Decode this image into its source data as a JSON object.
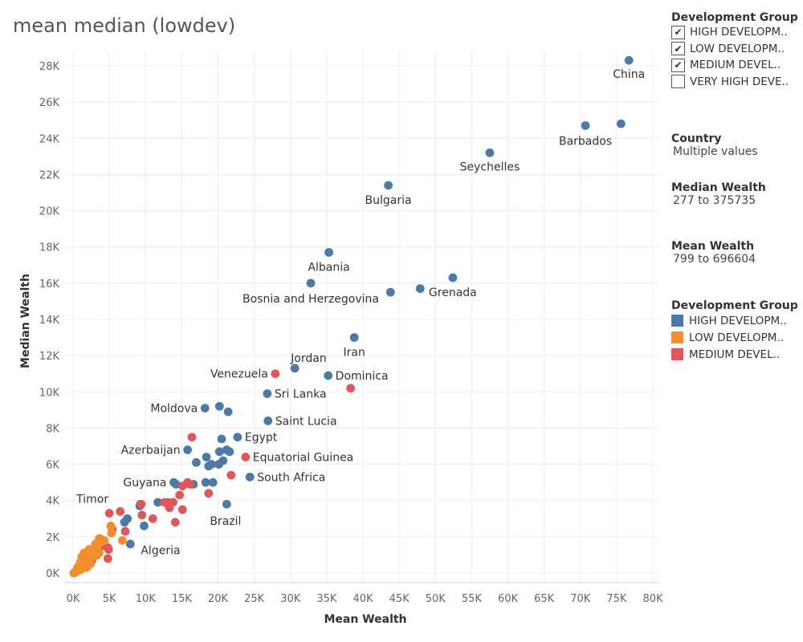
{
  "title": "mean median (lowdev)",
  "filters": {
    "development_group": {
      "title": "Development Group",
      "options": [
        {
          "label": "HIGH DEVELOPM..",
          "checked": true
        },
        {
          "label": "LOW DEVELOPM..",
          "checked": true
        },
        {
          "label": "MEDIUM DEVEL..",
          "checked": true
        },
        {
          "label": "VERY HIGH DEVE..",
          "checked": false
        }
      ]
    },
    "country": {
      "title": "Country",
      "value": "Multiple values"
    },
    "median_wealth": {
      "title": "Median Wealth",
      "value": "277 to 375735"
    },
    "mean_wealth": {
      "title": "Mean Wealth",
      "value": "799 to 696604"
    }
  },
  "legend": {
    "title": "Development Group",
    "items": [
      {
        "label": "HIGH DEVELOPM..",
        "color": "#4e79a7"
      },
      {
        "label": "LOW DEVELOPM..",
        "color": "#f28e2b"
      },
      {
        "label": "MEDIUM DEVEL..",
        "color": "#e15759"
      }
    ]
  },
  "chart_data": {
    "type": "scatter",
    "xlabel": "Mean Wealth",
    "ylabel": "Median Wealth",
    "xlim": [
      0,
      80000
    ],
    "ylim": [
      0,
      28000
    ],
    "xticks": [
      0,
      5000,
      10000,
      15000,
      20000,
      25000,
      30000,
      35000,
      40000,
      45000,
      50000,
      55000,
      60000,
      65000,
      70000,
      75000,
      80000
    ],
    "xtick_labels": [
      "0K",
      "5K",
      "10K",
      "15K",
      "20K",
      "25K",
      "30K",
      "35K",
      "40K",
      "45K",
      "50K",
      "55K",
      "60K",
      "65K",
      "70K",
      "75K",
      "80K"
    ],
    "yticks": [
      0,
      2000,
      4000,
      6000,
      8000,
      10000,
      12000,
      14000,
      16000,
      18000,
      20000,
      22000,
      24000,
      26000,
      28000
    ],
    "ytick_labels": [
      "0K",
      "2K",
      "4K",
      "6K",
      "8K",
      "10K",
      "12K",
      "14K",
      "16K",
      "18K",
      "20K",
      "22K",
      "24K",
      "26K",
      "28K"
    ],
    "grid": true,
    "series": [
      {
        "name": "HIGH DEVELOPM..",
        "color": "#4e79a7",
        "points": [
          {
            "x": 76700,
            "y": 28300,
            "label": "China"
          },
          {
            "x": 70700,
            "y": 24700,
            "label": "Barbados"
          },
          {
            "x": 75600,
            "y": 24800
          },
          {
            "x": 57500,
            "y": 23200,
            "label": "Seychelles"
          },
          {
            "x": 43500,
            "y": 21400,
            "label": "Bulgaria"
          },
          {
            "x": 35300,
            "y": 17700,
            "label": "Albania"
          },
          {
            "x": 32800,
            "y": 16000,
            "label": "Bosnia and Herzegovina"
          },
          {
            "x": 43800,
            "y": 15500
          },
          {
            "x": 47900,
            "y": 15700
          },
          {
            "x": 52400,
            "y": 16300,
            "label": "Grenada"
          },
          {
            "x": 38800,
            "y": 13000,
            "label": "Iran"
          },
          {
            "x": 30600,
            "y": 11300,
            "label": "Jordan"
          },
          {
            "x": 35200,
            "y": 10900,
            "label": "Dominica"
          },
          {
            "x": 26800,
            "y": 9900,
            "label": "Sri Lanka"
          },
          {
            "x": 18200,
            "y": 9100,
            "label": "Moldova"
          },
          {
            "x": 20200,
            "y": 9200
          },
          {
            "x": 21400,
            "y": 8900
          },
          {
            "x": 26900,
            "y": 8400,
            "label": "Saint Lucia"
          },
          {
            "x": 22700,
            "y": 7500,
            "label": "Egypt"
          },
          {
            "x": 20500,
            "y": 7400
          },
          {
            "x": 15800,
            "y": 6800,
            "label": "Azerbaijan"
          },
          {
            "x": 20200,
            "y": 6700
          },
          {
            "x": 21200,
            "y": 6800
          },
          {
            "x": 21600,
            "y": 6700
          },
          {
            "x": 18400,
            "y": 6400
          },
          {
            "x": 17000,
            "y": 6100
          },
          {
            "x": 18700,
            "y": 5900
          },
          {
            "x": 19100,
            "y": 6000
          },
          {
            "x": 20100,
            "y": 6000
          },
          {
            "x": 20700,
            "y": 6200
          },
          {
            "x": 24400,
            "y": 5300,
            "label": "South Africa"
          },
          {
            "x": 13900,
            "y": 5000,
            "label": "Guyana"
          },
          {
            "x": 14200,
            "y": 4900
          },
          {
            "x": 16600,
            "y": 4900
          },
          {
            "x": 18300,
            "y": 5000
          },
          {
            "x": 19300,
            "y": 5000
          },
          {
            "x": 21200,
            "y": 3800,
            "label": "Brazil"
          },
          {
            "x": 9300,
            "y": 3800
          },
          {
            "x": 9200,
            "y": 3700
          },
          {
            "x": 11700,
            "y": 3900
          },
          {
            "x": 7500,
            "y": 3000
          },
          {
            "x": 7100,
            "y": 2800
          },
          {
            "x": 9800,
            "y": 2600
          },
          {
            "x": 7900,
            "y": 1600
          }
        ]
      },
      {
        "name": "MEDIUM DEVEL..",
        "color": "#e15759",
        "points": [
          {
            "x": 27900,
            "y": 11000,
            "label": "Venezuela"
          },
          {
            "x": 38300,
            "y": 10200
          },
          {
            "x": 16400,
            "y": 7500
          },
          {
            "x": 23800,
            "y": 6400,
            "label": "Equatorial Guinea"
          },
          {
            "x": 21800,
            "y": 5400
          },
          {
            "x": 15100,
            "y": 4800
          },
          {
            "x": 15800,
            "y": 5000
          },
          {
            "x": 16100,
            "y": 4900
          },
          {
            "x": 14700,
            "y": 4300
          },
          {
            "x": 18700,
            "y": 4400
          },
          {
            "x": 12600,
            "y": 3900
          },
          {
            "x": 13100,
            "y": 3900
          },
          {
            "x": 13800,
            "y": 3900
          },
          {
            "x": 13300,
            "y": 3600
          },
          {
            "x": 15100,
            "y": 3500
          },
          {
            "x": 9400,
            "y": 3800
          },
          {
            "x": 11000,
            "y": 3000
          },
          {
            "x": 9500,
            "y": 3200
          },
          {
            "x": 5000,
            "y": 3300,
            "label": "Timor"
          },
          {
            "x": 6500,
            "y": 3400
          },
          {
            "x": 14100,
            "y": 2800
          },
          {
            "x": 5400,
            "y": 2400
          },
          {
            "x": 7200,
            "y": 2300
          },
          {
            "x": 3700,
            "y": 1900
          },
          {
            "x": 4000,
            "y": 1500
          },
          {
            "x": 4800,
            "y": 1400
          },
          {
            "x": 4900,
            "y": 1300
          },
          {
            "x": 3300,
            "y": 1000
          },
          {
            "x": 2600,
            "y": 700
          },
          {
            "x": 2100,
            "y": 600
          },
          {
            "x": 4800,
            "y": 800
          }
        ]
      },
      {
        "name": "LOW DEVELOPM..",
        "color": "#f28e2b",
        "points": [
          {
            "x": 6800,
            "y": 1800,
            "label": "Algeria"
          },
          {
            "x": 5200,
            "y": 2600
          },
          {
            "x": 5300,
            "y": 2200
          },
          {
            "x": 3600,
            "y": 1900
          },
          {
            "x": 3900,
            "y": 1700
          },
          {
            "x": 4300,
            "y": 1800
          },
          {
            "x": 3100,
            "y": 1600
          },
          {
            "x": 3300,
            "y": 1400
          },
          {
            "x": 2200,
            "y": 1300
          },
          {
            "x": 2700,
            "y": 1200
          },
          {
            "x": 3600,
            "y": 1100
          },
          {
            "x": 1500,
            "y": 1100
          },
          {
            "x": 1200,
            "y": 900
          },
          {
            "x": 1600,
            "y": 700
          },
          {
            "x": 2100,
            "y": 800
          },
          {
            "x": 2800,
            "y": 900
          },
          {
            "x": 1000,
            "y": 600
          },
          {
            "x": 1300,
            "y": 500
          },
          {
            "x": 1700,
            "y": 400
          },
          {
            "x": 900,
            "y": 400
          },
          {
            "x": 600,
            "y": 300
          },
          {
            "x": 1100,
            "y": 200
          },
          {
            "x": 500,
            "y": 100
          },
          {
            "x": 300,
            "y": 50
          },
          {
            "x": 100,
            "y": 0
          },
          {
            "x": 800,
            "y": 150
          },
          {
            "x": 1900,
            "y": 300
          },
          {
            "x": 2400,
            "y": 500
          }
        ]
      }
    ]
  }
}
